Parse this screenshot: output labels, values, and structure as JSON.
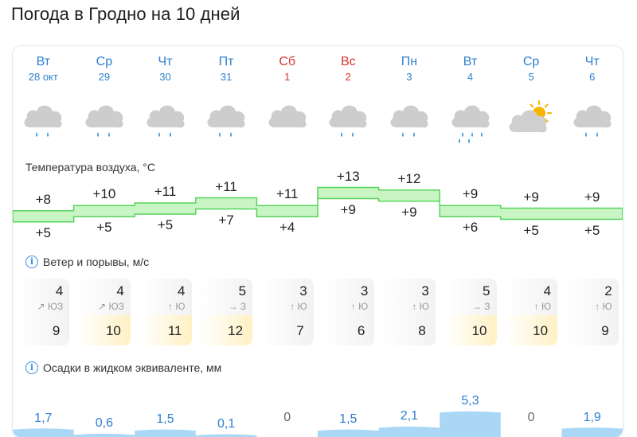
{
  "title": "Погода в Гродно на 10 дней",
  "days": [
    {
      "name": "Вт",
      "date": "28 окт",
      "weekend": false,
      "icon": "rain-cloud-icon"
    },
    {
      "name": "Ср",
      "date": "29",
      "weekend": false,
      "icon": "rain-cloud-icon"
    },
    {
      "name": "Чт",
      "date": "30",
      "weekend": false,
      "icon": "rain-cloud-icon"
    },
    {
      "name": "Пт",
      "date": "31",
      "weekend": false,
      "icon": "rain-cloud-icon"
    },
    {
      "name": "Сб",
      "date": "1",
      "weekend": true,
      "icon": "cloud-icon"
    },
    {
      "name": "Вс",
      "date": "2",
      "weekend": true,
      "icon": "rain-cloud-icon"
    },
    {
      "name": "Пн",
      "date": "3",
      "weekend": false,
      "icon": "rain-cloud-icon"
    },
    {
      "name": "Вт",
      "date": "4",
      "weekend": false,
      "icon": "heavy-rain-cloud-icon"
    },
    {
      "name": "Ср",
      "date": "5",
      "weekend": false,
      "icon": "sun-cloud-icon"
    },
    {
      "name": "Чт",
      "date": "6",
      "weekend": false,
      "icon": "rain-cloud-icon"
    }
  ],
  "temperature": {
    "label": "Температура воздуха, °C",
    "max": [
      "+8",
      "+10",
      "+11",
      "+11",
      "+11",
      "+13",
      "+12",
      "+9",
      "+9",
      "+9"
    ],
    "min": [
      "+5",
      "+5",
      "+5",
      "+7",
      "+4",
      "+9",
      "+9",
      "+6",
      "+5",
      "+5"
    ],
    "max_values": [
      8,
      10,
      11,
      11,
      11,
      13,
      12,
      9,
      9,
      9
    ],
    "min_values": [
      5,
      5,
      5,
      7,
      4,
      9,
      9,
      6,
      5,
      5
    ]
  },
  "wind": {
    "label": "Ветер и порывы, м/с",
    "speed": [
      "4",
      "4",
      "4",
      "5",
      "3",
      "3",
      "3",
      "5",
      "4",
      "2"
    ],
    "direction": [
      "↗ ЮЗ",
      "↗ ЮЗ",
      "↑ Ю",
      "→ З",
      "↑ Ю",
      "↑ Ю",
      "↑ Ю",
      "→ З",
      "↑ Ю",
      "↑ Ю"
    ],
    "gusts": [
      "9",
      "10",
      "11",
      "12",
      "7",
      "6",
      "8",
      "10",
      "10",
      "9"
    ]
  },
  "precipitation": {
    "label": "Осадки в жидком эквиваленте, мм",
    "values": [
      "1,7",
      "0,6",
      "1,5",
      "0,1",
      "0",
      "1,5",
      "2,1",
      "5,3",
      "0",
      "1,9"
    ],
    "amounts": [
      1.7,
      0.6,
      1.5,
      0.1,
      0,
      1.5,
      2.1,
      5.3,
      0,
      1.9
    ]
  },
  "colors": {
    "temp_band_fill": "#c9f5c4",
    "temp_band_line": "#56d45a",
    "precip_fill": "#a9d7f5",
    "weekday": "#2e7fd1",
    "weekend": "#d9332b",
    "gust_high": "#fff1c4"
  }
}
